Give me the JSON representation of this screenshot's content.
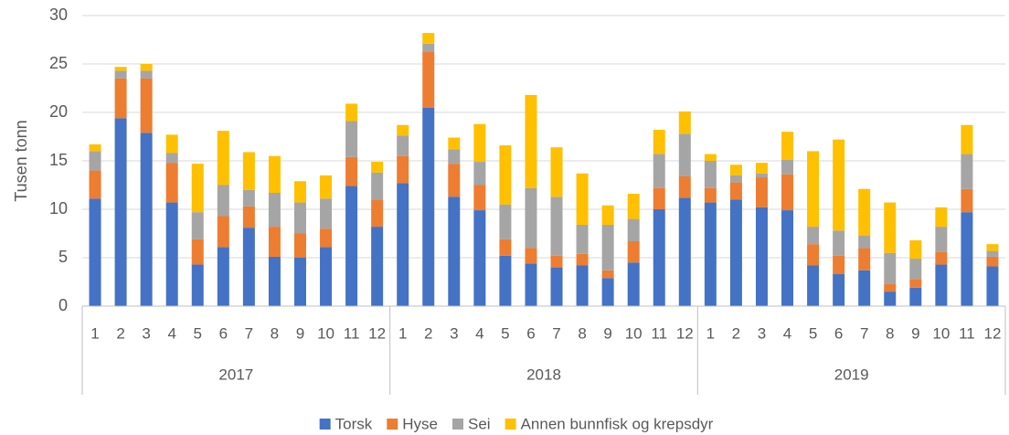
{
  "chart_data": {
    "type": "stacked_bar",
    "y_label": "Tusen tonn",
    "categories": [
      "1",
      "2",
      "3",
      "4",
      "5",
      "6",
      "7",
      "8",
      "9",
      "10",
      "11",
      "12",
      "1",
      "2",
      "3",
      "4",
      "5",
      "6",
      "7",
      "8",
      "9",
      "10",
      "11",
      "12",
      "1",
      "2",
      "3",
      "4",
      "5",
      "6",
      "7",
      "8",
      "9",
      "10",
      "11",
      "12"
    ],
    "groups": [
      "2017",
      "2018",
      "2019"
    ],
    "series": [
      {
        "name": "Torsk",
        "color": "#4472c4",
        "values": [
          11.1,
          19.4,
          17.9,
          10.7,
          4.3,
          6.1,
          8.1,
          5.1,
          5.0,
          6.1,
          12.4,
          8.2,
          12.7,
          20.5,
          11.3,
          9.9,
          5.2,
          4.4,
          4.0,
          4.2,
          2.9,
          4.5,
          10.0,
          11.2,
          10.7,
          11.0,
          10.2,
          9.9,
          4.2,
          3.3,
          3.7,
          1.5,
          1.9,
          4.3,
          9.7,
          4.1
        ]
      },
      {
        "name": "Hyse",
        "color": "#ed7d31",
        "values": [
          2.9,
          4.1,
          5.6,
          4.1,
          2.6,
          3.2,
          2.2,
          3.1,
          2.5,
          1.9,
          3.0,
          2.8,
          2.8,
          5.8,
          3.4,
          2.6,
          1.7,
          1.6,
          1.2,
          1.2,
          0.8,
          2.2,
          2.2,
          2.2,
          1.5,
          1.8,
          3.1,
          3.7,
          2.2,
          1.9,
          2.3,
          0.8,
          0.9,
          1.3,
          2.4,
          1.0
        ]
      },
      {
        "name": "Sei",
        "color": "#a5a5a5",
        "values": [
          2.0,
          0.8,
          0.8,
          1.0,
          2.8,
          3.2,
          1.7,
          3.5,
          3.2,
          3.1,
          3.7,
          2.8,
          2.1,
          0.8,
          1.5,
          2.4,
          3.6,
          6.2,
          6.1,
          3.0,
          4.7,
          2.3,
          3.5,
          4.4,
          2.8,
          0.7,
          0.4,
          1.5,
          1.8,
          2.6,
          1.3,
          3.2,
          2.1,
          2.6,
          3.6,
          0.6
        ]
      },
      {
        "name": "Annen bunnfisk og krepsdyr",
        "color": "#ffc000",
        "values": [
          0.7,
          0.4,
          0.7,
          1.9,
          5.0,
          5.6,
          3.9,
          3.8,
          2.2,
          2.4,
          1.8,
          1.1,
          1.1,
          1.1,
          1.2,
          3.9,
          6.1,
          9.6,
          5.1,
          5.3,
          2.0,
          2.6,
          2.5,
          2.3,
          0.7,
          1.1,
          1.1,
          2.9,
          7.8,
          9.4,
          4.8,
          5.2,
          1.9,
          2.0,
          3.0,
          0.7
        ]
      }
    ],
    "ylim": [
      0,
      30
    ],
    "yticks": [
      0,
      5,
      10,
      15,
      20,
      25,
      30
    ],
    "grid": true,
    "legend": "bottom"
  }
}
